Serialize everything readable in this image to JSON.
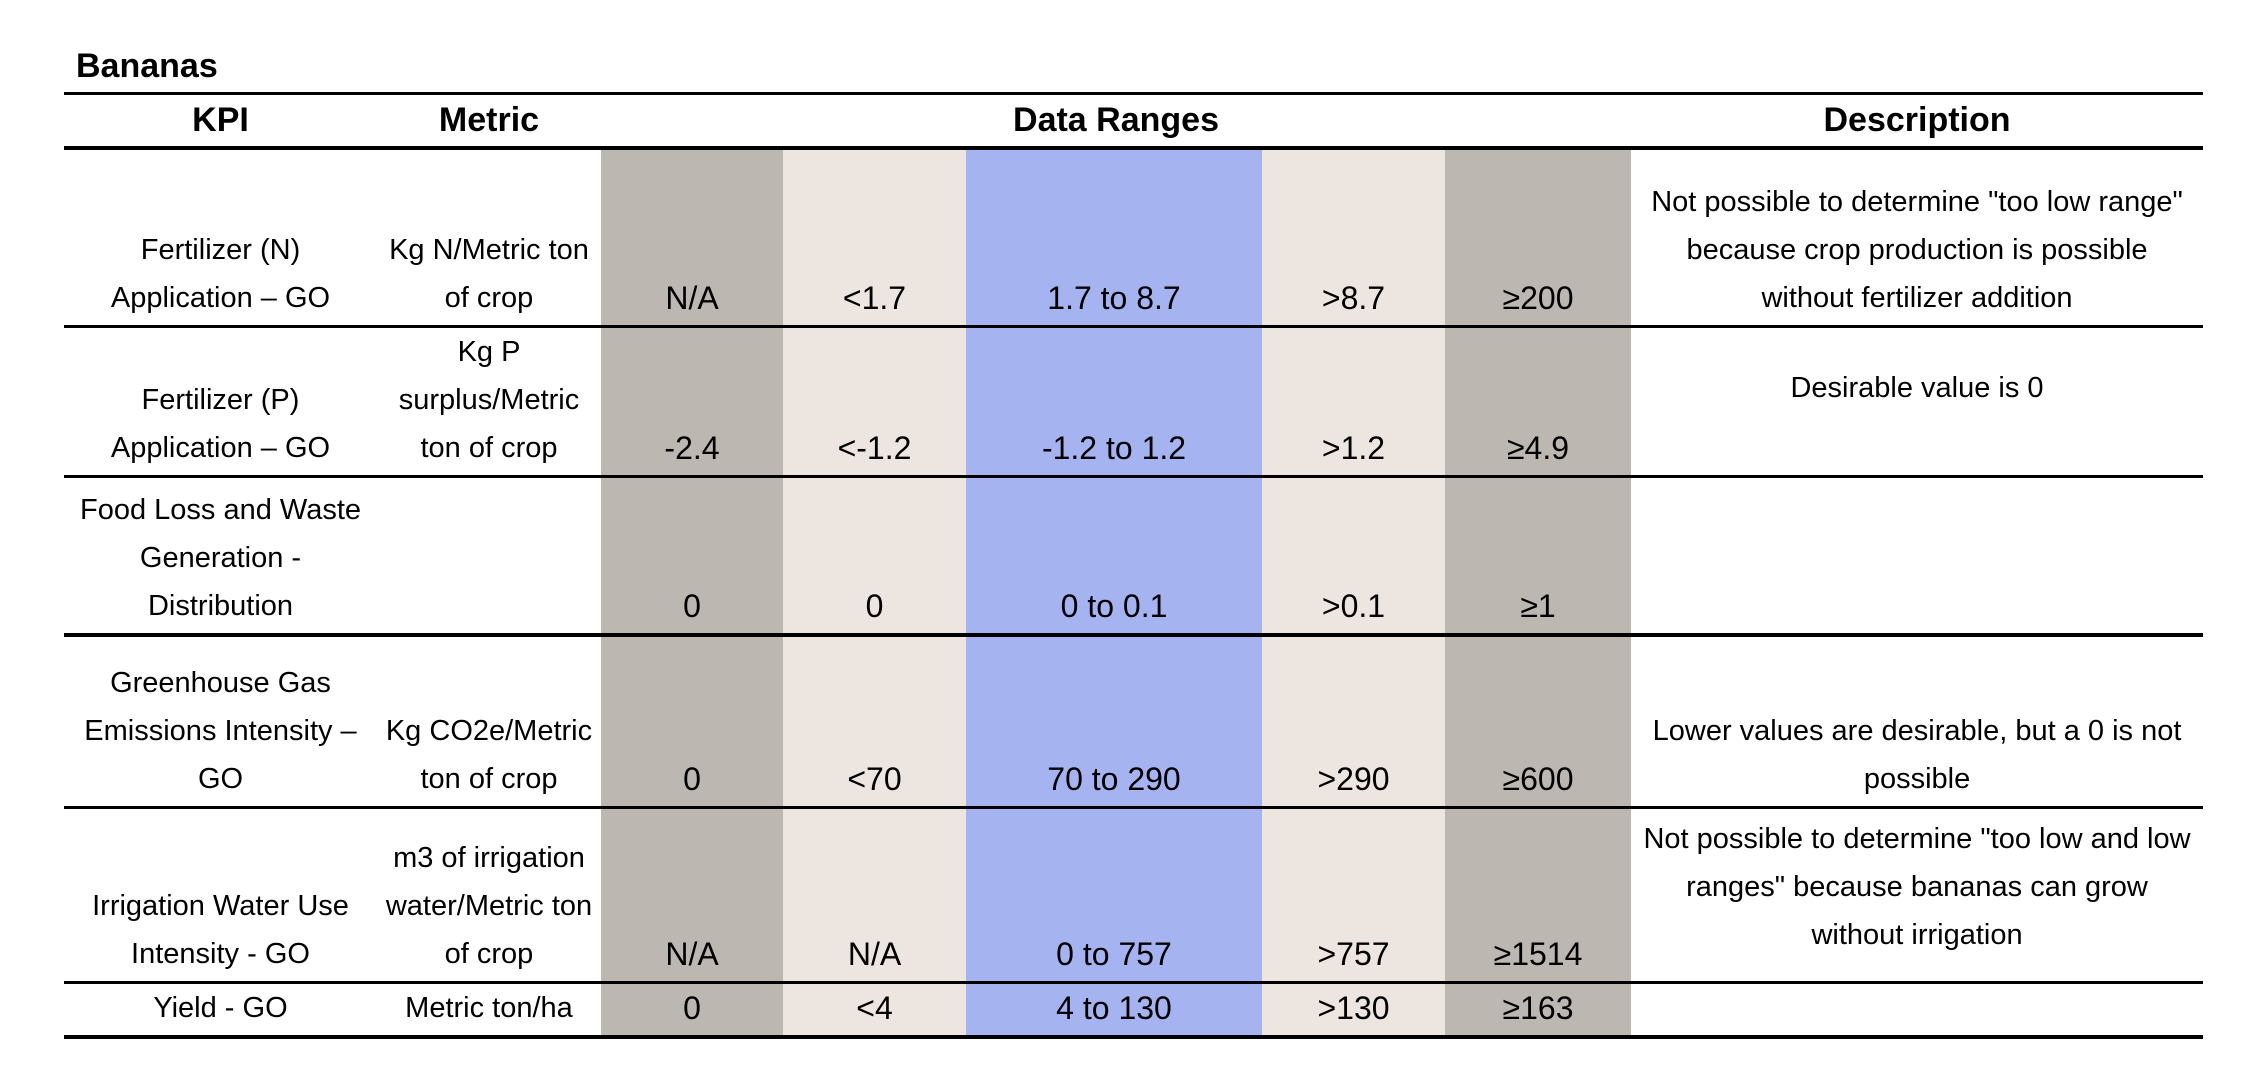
{
  "title": "Bananas",
  "headers": {
    "kpi": "KPI",
    "metric": "Metric",
    "data_ranges": "Data Ranges",
    "description": "Description"
  },
  "colors": {
    "gray_band": "#bcb7b1",
    "beige_band": "#ece5e0",
    "blue_band": "#a6b3f1"
  },
  "rows": [
    {
      "kpi": "Fertilizer (N) Application – GO",
      "metric": "Kg N/Metric ton of crop",
      "ranges": [
        "N/A",
        "<1.7",
        "1.7 to 8.7",
        ">8.7",
        "≥200"
      ],
      "description": "Not possible to determine \"too low range\" because crop production is possible without fertilizer addition"
    },
    {
      "kpi": "Fertilizer (P) Application – GO",
      "metric": "Kg P surplus/Metric ton of crop",
      "ranges": [
        "-2.4",
        "<-1.2",
        "-1.2 to 1.2",
        ">1.2",
        "≥4.9"
      ],
      "description": "Desirable value is 0"
    },
    {
      "kpi": "Food Loss and Waste Generation - Distribution",
      "metric": "",
      "ranges": [
        "0",
        "0",
        "0 to 0.1",
        ">0.1",
        "≥1"
      ],
      "description": ""
    },
    {
      "kpi": "Greenhouse Gas Emissions Intensity – GO",
      "metric": "Kg CO2e/Metric ton of crop",
      "ranges": [
        "0",
        "<70",
        "70 to 290",
        ">290",
        "≥600"
      ],
      "description": "Lower values are desirable, but a 0 is not possible"
    },
    {
      "kpi": "Irrigation Water Use Intensity - GO",
      "metric": "m3 of irrigation water/Metric ton of crop",
      "ranges": [
        "N/A",
        "N/A",
        "0 to 757",
        ">757",
        "≥1514"
      ],
      "description": "Not possible to determine \"too low and low ranges\" because bananas can grow without irrigation"
    },
    {
      "kpi": "Yield - GO",
      "metric": "Metric ton/ha",
      "ranges": [
        "0",
        "<4",
        "4  to 130",
        ">130",
        "≥163"
      ],
      "description": ""
    }
  ]
}
